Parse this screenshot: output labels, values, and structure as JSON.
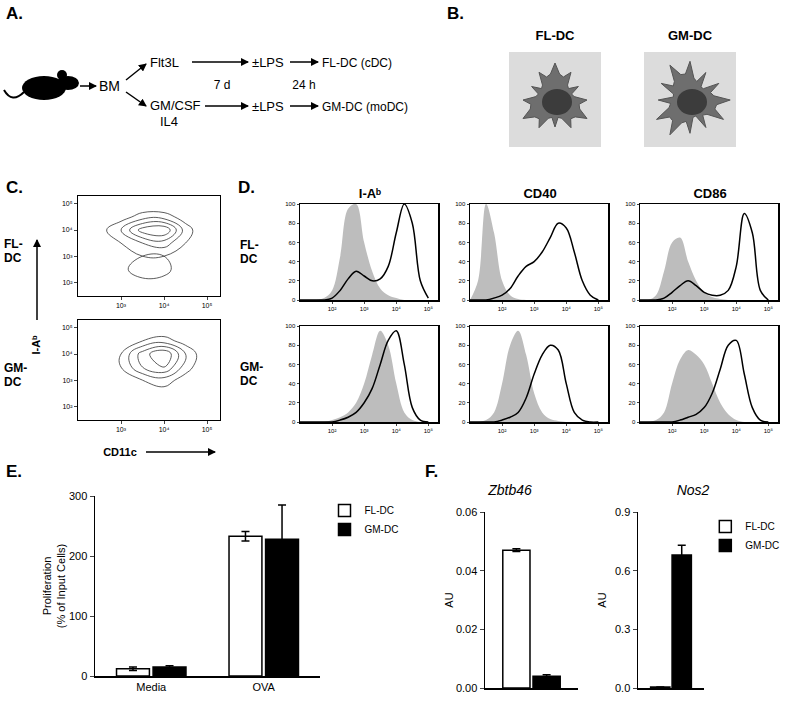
{
  "panel_labels": [
    "A.",
    "B.",
    "C.",
    "D.",
    "E.",
    "F."
  ],
  "diagram": {
    "source": "BM",
    "upper": {
      "factors": [
        "Flt3L"
      ],
      "stim": "±LPS",
      "product": "FL-DC (cDC)"
    },
    "lower": {
      "factors": [
        "GM/CSF",
        "IL4"
      ],
      "stim": "±LPS",
      "product": "GM-DC (moDC)"
    },
    "durations": [
      "7 d",
      "24 h"
    ]
  },
  "micrographs": [
    "FL-DC",
    "GM-DC"
  ],
  "chart_data": {
    "C": {
      "rows": [
        "FL-DC",
        "GM-DC"
      ],
      "xlabel": "CD11c",
      "ylabel": "I-Aᵇ",
      "charts": [
        {
          "type": "contour",
          "log": true,
          "x": [
            100,
            316,
            1000,
            3162,
            10000,
            31623,
            100000
          ],
          "y": [
            30,
            100,
            316,
            1000,
            3162,
            10000,
            31623,
            100000
          ],
          "z": [
            [
              0,
              0,
              0,
              0,
              0,
              0,
              0
            ],
            [
              0,
              0,
              0,
              1,
              1,
              0,
              0
            ],
            [
              0,
              0,
              1,
              4,
              3,
              0,
              0
            ],
            [
              0,
              0,
              1,
              2,
              2,
              1,
              0
            ],
            [
              0,
              1,
              2,
              4,
              5,
              2,
              0
            ],
            [
              0,
              1,
              4,
              9,
              10,
              3,
              0
            ],
            [
              0,
              0,
              1,
              3,
              3,
              1,
              0
            ],
            [
              0,
              0,
              0,
              0,
              0,
              0,
              0
            ]
          ],
          "xlim": [
            100,
            200000
          ],
          "xticks": [
            {
              "value": 1000,
              "label": "10³"
            },
            {
              "value": 10000,
              "label": "10⁴"
            },
            {
              "value": 100000,
              "label": "10⁵"
            }
          ],
          "ylim": [
            30,
            200000
          ],
          "yticks": [
            {
              "value": 100,
              "label": "10²"
            },
            {
              "value": 1000,
              "label": "10³"
            },
            {
              "value": 10000,
              "label": "10⁴"
            },
            {
              "value": 100000,
              "label": "10⁵"
            }
          ]
        },
        {
          "type": "contour",
          "log": true,
          "x": [
            100,
            316,
            1000,
            3162,
            10000,
            31623,
            100000
          ],
          "y": [
            30,
            100,
            316,
            1000,
            3162,
            10000,
            31623,
            100000
          ],
          "z": [
            [
              0,
              0,
              0,
              0,
              0,
              0,
              0
            ],
            [
              0,
              0,
              0,
              0,
              0,
              0,
              0
            ],
            [
              0,
              0,
              0,
              1,
              1,
              0,
              0
            ],
            [
              0,
              0,
              1,
              2,
              3,
              1,
              0
            ],
            [
              0,
              0,
              2,
              6,
              8,
              3,
              0
            ],
            [
              0,
              0,
              2,
              7,
              10,
              4,
              0
            ],
            [
              0,
              0,
              0,
              2,
              3,
              1,
              0
            ],
            [
              0,
              0,
              0,
              0,
              0,
              0,
              0
            ]
          ],
          "xlim": [
            100,
            200000
          ],
          "xticks": [
            {
              "value": 1000,
              "label": "10³"
            },
            {
              "value": 10000,
              "label": "10⁴"
            },
            {
              "value": 100000,
              "label": "10⁵"
            }
          ],
          "ylim": [
            30,
            200000
          ],
          "yticks": [
            {
              "value": 100,
              "label": "10²"
            },
            {
              "value": 1000,
              "label": "10³"
            },
            {
              "value": 10000,
              "label": "10⁴"
            },
            {
              "value": 100000,
              "label": "10⁵"
            }
          ]
        }
      ]
    },
    "D": {
      "rows": [
        "FL-DC",
        "GM-DC"
      ],
      "columns": [
        "I-Aᵇ",
        "CD40",
        "CD86"
      ],
      "log": "x",
      "x": [
        10,
        17.8,
        31.6,
        56.2,
        100,
        178,
        316,
        562,
        1000,
        1778,
        3162,
        5623,
        10000,
        17783,
        31623,
        56234,
        100000
      ],
      "xlim": [
        10,
        200000
      ],
      "xticks": [
        {
          "value": 100,
          "label": "10²"
        },
        {
          "value": 1000,
          "label": "10³"
        },
        {
          "value": 10000,
          "label": "10⁴"
        },
        {
          "value": 100000,
          "label": "10⁵"
        }
      ],
      "ylim": [
        0,
        100
      ],
      "yticks": [
        0,
        20,
        40,
        60,
        80,
        100
      ],
      "charts": [
        [
          {
            "type": "line",
            "series": [
              {
                "type": "area",
                "color": "#bdbdbd",
                "values": [
                  0,
                  0,
                  0,
                  2,
                  10,
                  45,
                  95,
                  100,
                  60,
                  30,
                  12,
                  5,
                  2,
                  0,
                  0,
                  0,
                  0
                ]
              },
              {
                "type": "line",
                "color": "#000000",
                "values": [
                  0,
                  0,
                  0,
                  0,
                  2,
                  10,
                  22,
                  30,
                  25,
                  20,
                  22,
                  35,
                  70,
                  100,
                  80,
                  20,
                  2
                ]
              }
            ]
          },
          {
            "type": "line",
            "series": [
              {
                "type": "area",
                "color": "#bdbdbd",
                "values": [
                  0,
                  20,
                  100,
                  70,
                  20,
                  5,
                  1,
                  0,
                  0,
                  0,
                  0,
                  0,
                  0,
                  0,
                  0,
                  0,
                  0
                ]
              },
              {
                "type": "line",
                "color": "#000000",
                "values": [
                  0,
                  0,
                  0,
                  2,
                  5,
                  12,
                  25,
                  35,
                  40,
                  50,
                  65,
                  80,
                  75,
                  50,
                  20,
                  5,
                  0
                ]
              }
            ]
          },
          {
            "type": "line",
            "series": [
              {
                "type": "area",
                "color": "#bdbdbd",
                "values": [
                  0,
                  0,
                  5,
                  30,
                  60,
                  65,
                  40,
                  20,
                  8,
                  3,
                  1,
                  0,
                  0,
                  0,
                  0,
                  0,
                  0
                ]
              },
              {
                "type": "line",
                "color": "#000000",
                "values": [
                  0,
                  0,
                  0,
                  2,
                  8,
                  15,
                  20,
                  15,
                  8,
                  5,
                  5,
                  10,
                  35,
                  90,
                  70,
                  10,
                  0
                ]
              }
            ]
          }
        ],
        [
          {
            "type": "line",
            "series": [
              {
                "type": "area",
                "color": "#bdbdbd",
                "values": [
                  0,
                  0,
                  0,
                  0,
                  2,
                  5,
                  10,
                  20,
                  40,
                  70,
                  95,
                  80,
                  40,
                  10,
                  2,
                  0,
                  0
                ]
              },
              {
                "type": "line",
                "color": "#000000",
                "values": [
                  0,
                  0,
                  0,
                  0,
                  0,
                  2,
                  5,
                  10,
                  20,
                  35,
                  60,
                  85,
                  95,
                  60,
                  15,
                  2,
                  0
                ]
              }
            ]
          },
          {
            "type": "line",
            "series": [
              {
                "type": "area",
                "color": "#bdbdbd",
                "values": [
                  0,
                  0,
                  2,
                  10,
                  40,
                  80,
                  95,
                  70,
                  30,
                  10,
                  3,
                  1,
                  0,
                  0,
                  0,
                  0,
                  0
                ]
              },
              {
                "type": "line",
                "color": "#000000",
                "values": [
                  0,
                  0,
                  0,
                  0,
                  2,
                  5,
                  10,
                  25,
                  50,
                  70,
                  80,
                  75,
                  40,
                  10,
                  2,
                  0,
                  0
                ]
              }
            ]
          },
          {
            "type": "line",
            "series": [
              {
                "type": "area",
                "color": "#bdbdbd",
                "values": [
                  0,
                  0,
                  2,
                  10,
                  40,
                  65,
                  75,
                  70,
                  60,
                  40,
                  20,
                  8,
                  2,
                  0,
                  0,
                  0,
                  0
                ]
              },
              {
                "type": "line",
                "color": "#000000",
                "values": [
                  0,
                  0,
                  0,
                  0,
                  0,
                  2,
                  5,
                  8,
                  15,
                  30,
                  55,
                  80,
                  85,
                  50,
                  15,
                  2,
                  0
                ]
              }
            ]
          }
        ]
      ]
    },
    "E": {
      "type": "bar",
      "ylabel": [
        "Proliferation",
        "(% of Input Cells)"
      ],
      "categories": [
        "Media",
        "OVA"
      ],
      "series": [
        {
          "name": "FL-DC",
          "color": "#ffffff",
          "values": [
            12,
            233
          ],
          "error": [
            3,
            8
          ]
        },
        {
          "name": "GM-DC",
          "color": "#000000",
          "values": [
            15,
            228
          ],
          "error": [
            2,
            57
          ]
        }
      ],
      "ylim": [
        0,
        300
      ],
      "yticks": [
        0,
        100,
        200,
        300
      ],
      "legend": "top right"
    },
    "F": [
      {
        "type": "bar",
        "title": "Zbtb46",
        "ylabel": "AU",
        "categories": [
          null
        ],
        "tick_labels": "y",
        "series": [
          {
            "name": "FL-DC",
            "color": "#ffffff",
            "values": [
              0.047
            ],
            "error": [
              0.0005
            ]
          },
          {
            "name": "GM-DC",
            "color": "#000000",
            "values": [
              0.004
            ],
            "error": [
              0.0005
            ]
          }
        ],
        "ylim": [
          0,
          0.06
        ],
        "yticks": [
          {
            "value": 0,
            "label": "0.00"
          },
          0.02,
          0.04,
          0.06
        ]
      },
      {
        "type": "bar",
        "title": "Nos2",
        "ylabel": "AU",
        "categories": [
          null
        ],
        "tick_labels": "y",
        "series": [
          {
            "name": "FL-DC",
            "color": "#ffffff",
            "values": [
              0.005
            ],
            "error": [
              0
            ]
          },
          {
            "name": "GM-DC",
            "color": "#000000",
            "values": [
              0.68
            ],
            "error": [
              0.05
            ]
          }
        ],
        "ylim": [
          0,
          0.9
        ],
        "yticks": [
          {
            "value": 0,
            "label": "0.0"
          },
          0.3,
          0.6,
          0.9
        ],
        "legend": "top right"
      }
    ]
  }
}
